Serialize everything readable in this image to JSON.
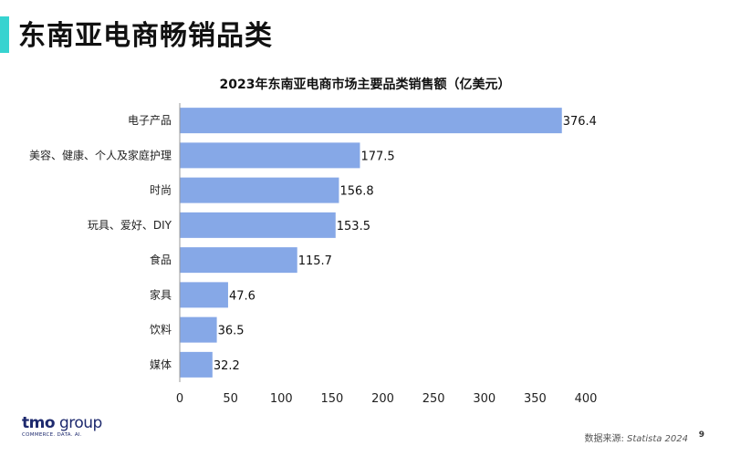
{
  "slide": {
    "title": "东南亚电商畅销品类",
    "accent_color": "#37d3d0",
    "page_number": "9"
  },
  "footer": {
    "logo_main": "tmo",
    "logo_secondary": "group",
    "logo_tagline": "COMMERCE. DATA. AI.",
    "source_prefix": "数据来源: ",
    "source_name": "Statista 2024"
  },
  "chart_data": {
    "type": "bar",
    "orientation": "horizontal",
    "title": "2023年东南亚电商市场主要品类销售额（亿美元）",
    "categories": [
      "电子产品",
      "美容、健康、个人及家庭护理",
      "时尚",
      "玩具、爱好、DIY",
      "食品",
      "家具",
      "饮料",
      "媒体"
    ],
    "values": [
      376.4,
      177.5,
      156.8,
      153.5,
      115.7,
      47.6,
      36.5,
      32.2
    ],
    "value_labels": [
      "376.4",
      "177.5",
      "156.8",
      "153.5",
      "115.7",
      "47.6",
      "36.5",
      "32.2"
    ],
    "xlim": [
      0,
      400
    ],
    "x_ticks": [
      0,
      50,
      100,
      150,
      200,
      250,
      300,
      350,
      400
    ],
    "bar_color": "#86a8e7",
    "grid": false,
    "legend": "none"
  }
}
